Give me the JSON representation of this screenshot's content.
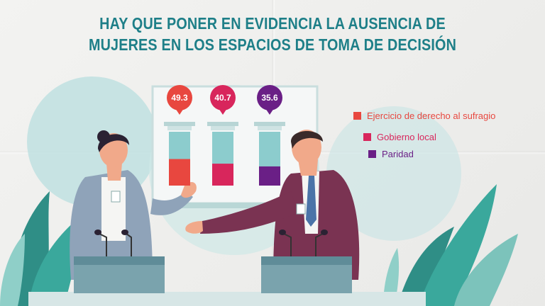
{
  "title_lines": [
    "HAY QUE PONER EN EVIDENCIA LA AUSENCIA DE",
    "MUJERES EN LOS ESPACIOS DE TOMA DE DECISIÓN"
  ],
  "chart_data": {
    "type": "bar",
    "categories": [
      "Ejercicio de derecho al sufragio",
      "Gobierno local",
      "Paridad"
    ],
    "values": [
      49.3,
      40.7,
      35.6
    ],
    "value_labels": [
      "49.3",
      "40.7",
      "35.6"
    ],
    "ylim": [
      0,
      100
    ],
    "colors": [
      "#e8473f",
      "#d8265c",
      "#6a1f86"
    ],
    "legend_position": "right"
  },
  "colors": {
    "title": "#1e7f88",
    "tube_empty": "#8ccccd",
    "woman_jacket": "#8fa3b9",
    "man_jacket": "#7a3352"
  },
  "icons": [
    "podium-left",
    "podium-right",
    "microphone",
    "plant-leaves",
    "woman-speaker",
    "man-speaker",
    "board"
  ]
}
